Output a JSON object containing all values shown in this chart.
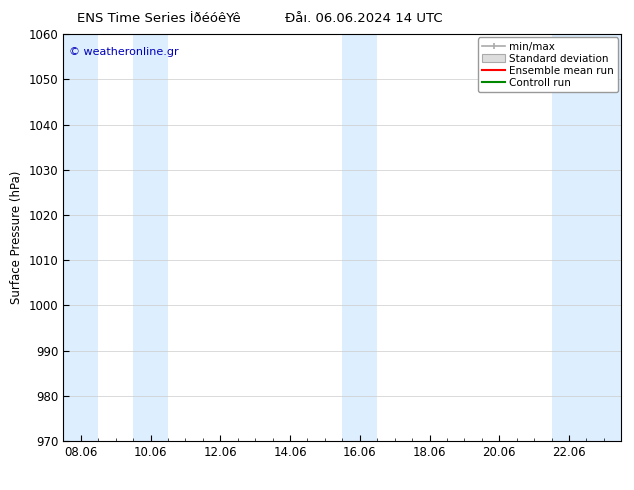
{
  "title_left": "ENS Time Series İðéóêYê",
  "title_right": "Ðåı. 06.06.2024 14 UTC",
  "ylabel": "Surface Pressure (hPa)",
  "ylim": [
    970,
    1060
  ],
  "yticks": [
    970,
    980,
    990,
    1000,
    1010,
    1020,
    1030,
    1040,
    1050,
    1060
  ],
  "xtick_labels": [
    "08.06",
    "10.06",
    "12.06",
    "14.06",
    "16.06",
    "18.06",
    "20.06",
    "22.06"
  ],
  "xtick_positions": [
    0.0,
    2.0,
    4.0,
    6.0,
    8.0,
    10.0,
    12.0,
    14.0
  ],
  "xlim": [
    -0.5,
    15.5
  ],
  "shaded_bands": [
    {
      "x_start": -0.5,
      "x_end": 0.5
    },
    {
      "x_start": 1.5,
      "x_end": 2.5
    },
    {
      "x_start": 7.5,
      "x_end": 8.5
    },
    {
      "x_start": 13.5,
      "x_end": 15.5
    }
  ],
  "shaded_color": "#ddeeff",
  "background_color": "#ffffff",
  "watermark": "© weatheronline.gr",
  "watermark_color": "#0000bb",
  "legend_entries": [
    "min/max",
    "Standard deviation",
    "Ensemble mean run",
    "Controll run"
  ],
  "legend_line_colors": [
    "#aaaaaa",
    "#cccccc",
    "#ff0000",
    "#008800"
  ],
  "grid_color": "#cccccc",
  "tick_color": "#000000",
  "font_size": 8.5,
  "title_font_size": 9.5
}
